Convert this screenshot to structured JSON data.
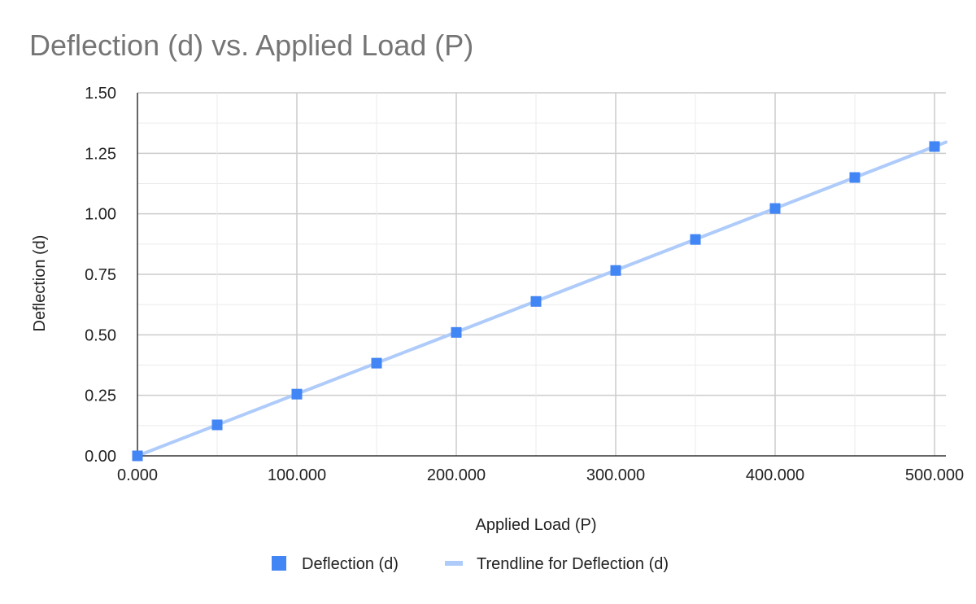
{
  "chart_data": {
    "type": "scatter",
    "title": "Deflection (d) vs. Applied Load (P)",
    "xlabel": "Applied Load (P)",
    "ylabel": "Deflection (d)",
    "xlim": [
      0,
      500
    ],
    "ylim": [
      0,
      1.5
    ],
    "x_ticks": [
      "0.000",
      "100.000",
      "200.000",
      "300.000",
      "400.000",
      "500.000"
    ],
    "y_ticks": [
      "0.00",
      "0.25",
      "0.50",
      "0.75",
      "1.00",
      "1.25",
      "1.50"
    ],
    "grid": true,
    "legend_position": "bottom",
    "series": [
      {
        "name": "Deflection (d)",
        "color": "#4285f4",
        "marker": "square",
        "x": [
          0,
          50,
          100,
          150,
          200,
          250,
          300,
          350,
          400,
          450,
          500
        ],
        "y": [
          0.0,
          0.128,
          0.255,
          0.383,
          0.51,
          0.638,
          0.766,
          0.894,
          1.022,
          1.15,
          1.278
        ]
      }
    ],
    "trendline": {
      "name": "Trendline for Deflection (d)",
      "color": "#aecbfa",
      "slope": 0.002556,
      "intercept": 0
    }
  }
}
